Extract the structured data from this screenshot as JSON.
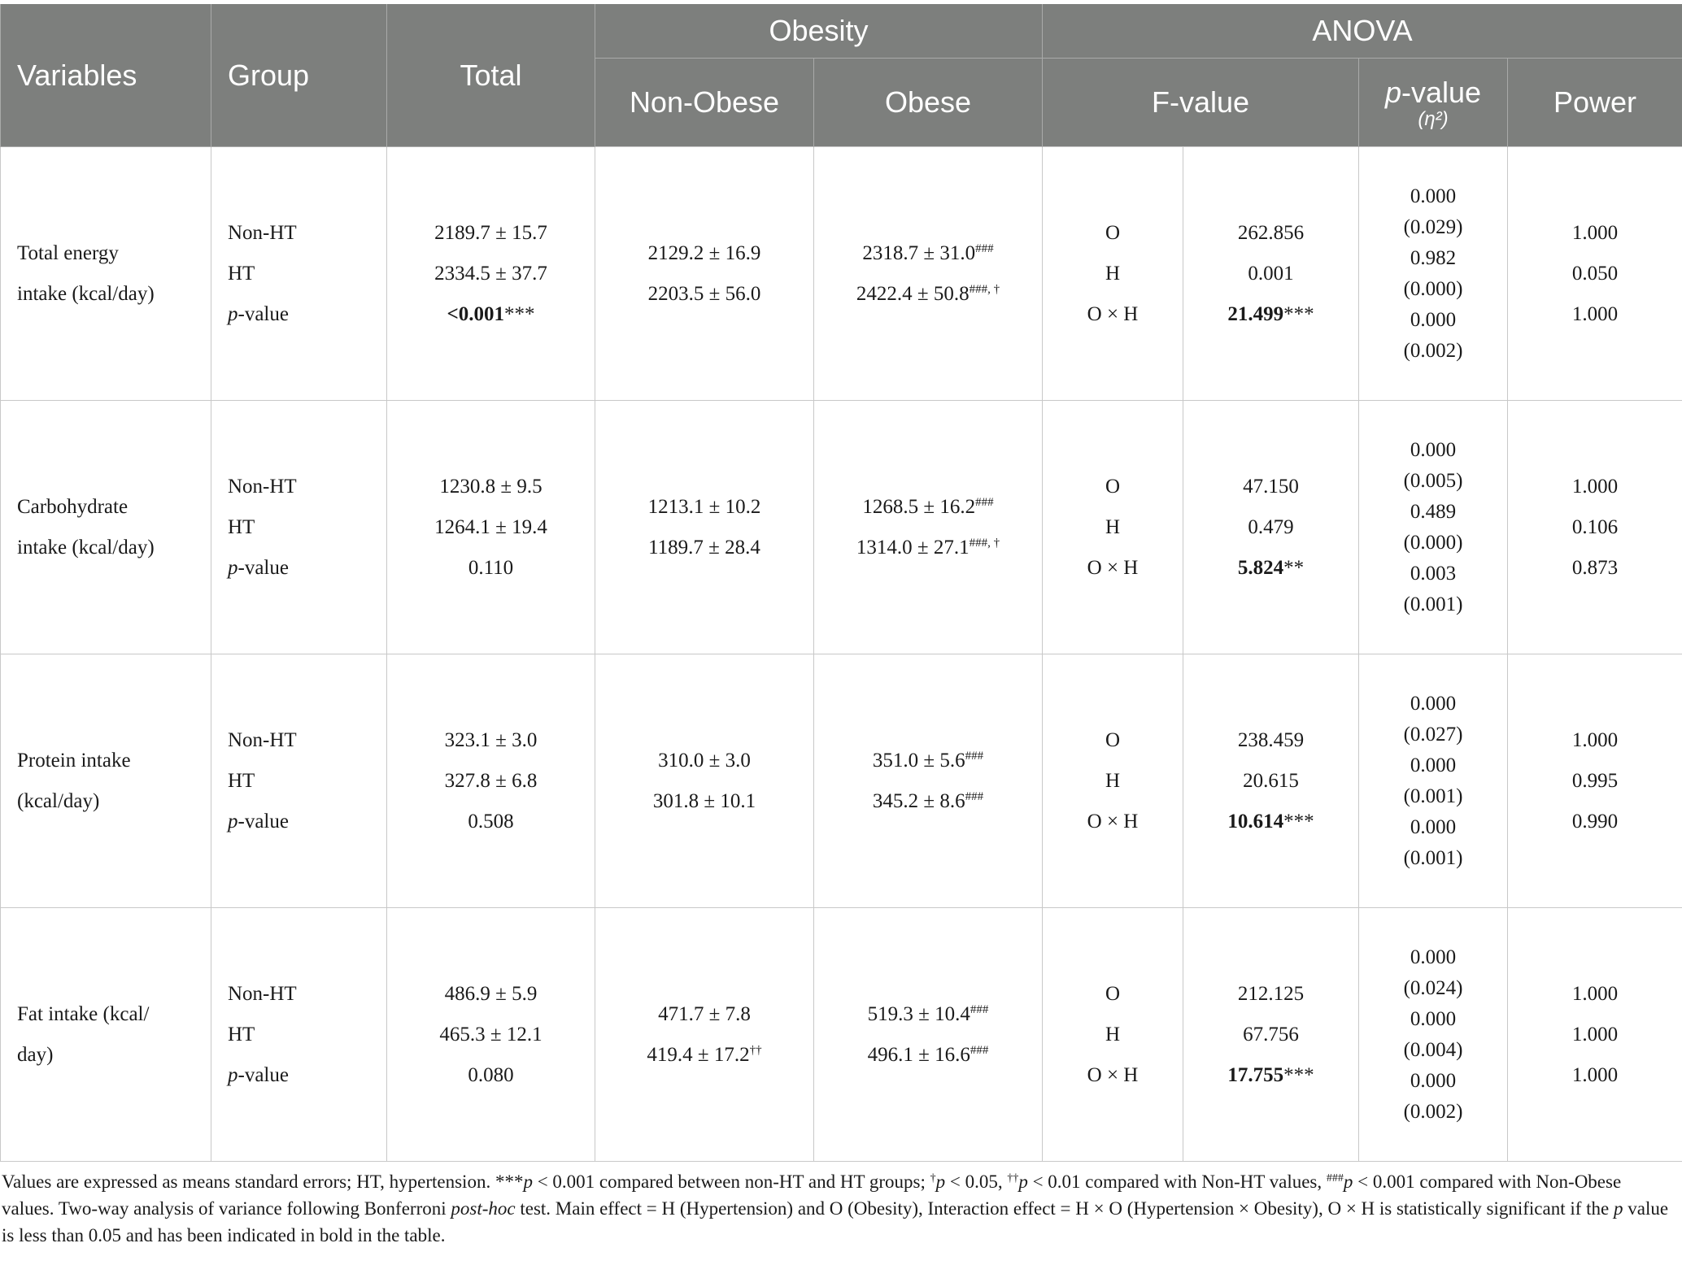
{
  "header": {
    "variables": "Variables",
    "group": "Group",
    "total": "Total",
    "obesity": "Obesity",
    "non_obese": "Non-Obese",
    "obese": "Obese",
    "anova": "ANOVA",
    "f_value": "F-value",
    "p_value_p": "p",
    "p_value_rest": "-value",
    "eta": "(η²)",
    "power": "Power"
  },
  "rows": [
    {
      "variable": [
        "Total energy",
        "intake (kcal/day)"
      ],
      "groups": [
        "Non-HT",
        "HT",
        "-value"
      ],
      "total": [
        "2189.7 ± 15.7",
        "2334.5 ± 37.7"
      ],
      "total_p": "<0.001",
      "total_p_stars": "***",
      "non_obese": [
        "2129.2 ± 16.9",
        "2203.5 ± 56.0"
      ],
      "obese": [
        [
          "2318.7 ± 31.0",
          "###"
        ],
        [
          "2422.4 ± 50.8",
          "###, †"
        ]
      ],
      "effects": [
        "O",
        "H",
        "O × H"
      ],
      "f": [
        "262.856",
        "0.001",
        "21.499"
      ],
      "f_stars": "***",
      "p_eta": [
        "0.000",
        "(0.029)",
        "0.982",
        "(0.000)",
        "0.000",
        "(0.002)"
      ],
      "power": [
        "1.000",
        "0.050",
        "1.000"
      ]
    },
    {
      "variable": [
        "Carbohydrate",
        "intake (kcal/day)"
      ],
      "groups": [
        "Non-HT",
        "HT",
        "-value"
      ],
      "total": [
        "1230.8 ± 9.5",
        "1264.1 ± 19.4"
      ],
      "total_p": "0.110",
      "total_p_stars": "",
      "non_obese": [
        "1213.1 ± 10.2",
        "1189.7 ± 28.4"
      ],
      "obese": [
        [
          "1268.5 ± 16.2",
          "###"
        ],
        [
          "1314.0 ± 27.1",
          "###, †"
        ]
      ],
      "effects": [
        "O",
        "H",
        "O × H"
      ],
      "f": [
        "47.150",
        "0.479",
        "5.824"
      ],
      "f_stars": "**",
      "p_eta": [
        "0.000",
        "(0.005)",
        "0.489",
        "(0.000)",
        "0.003",
        "(0.001)"
      ],
      "power": [
        "1.000",
        "0.106",
        "0.873"
      ]
    },
    {
      "variable": [
        "Protein intake",
        "(kcal/day)"
      ],
      "groups": [
        "Non-HT",
        "HT",
        "-value"
      ],
      "total": [
        "323.1 ± 3.0",
        "327.8 ± 6.8"
      ],
      "total_p": "0.508",
      "total_p_stars": "",
      "non_obese": [
        "310.0 ± 3.0",
        "301.8 ± 10.1"
      ],
      "obese": [
        [
          "351.0 ± 5.6",
          "###"
        ],
        [
          "345.2 ± 8.6",
          "###"
        ]
      ],
      "effects": [
        "O",
        "H",
        "O × H"
      ],
      "f": [
        "238.459",
        "20.615",
        "10.614"
      ],
      "f_stars": "***",
      "p_eta": [
        "0.000",
        "(0.027)",
        "0.000",
        "(0.001)",
        "0.000",
        "(0.001)"
      ],
      "power": [
        "1.000",
        "0.995",
        "0.990"
      ]
    },
    {
      "variable": [
        "Fat intake (kcal/",
        "day)"
      ],
      "groups": [
        "Non-HT",
        "HT",
        "-value"
      ],
      "total": [
        "486.9 ± 5.9",
        "465.3 ± 12.1"
      ],
      "total_p": "0.080",
      "total_p_stars": "",
      "non_obese": [
        "471.7 ± 7.8",
        "419.4 ± 17.2"
      ],
      "non_obese_sup": [
        "",
        "††"
      ],
      "obese": [
        [
          "519.3 ± 10.4",
          "###"
        ],
        [
          "496.1 ± 16.6",
          "###"
        ]
      ],
      "effects": [
        "O",
        "H",
        "O × H"
      ],
      "f": [
        "212.125",
        "67.756",
        "17.755"
      ],
      "f_stars": "***",
      "p_eta": [
        "0.000",
        "(0.024)",
        "0.000",
        "(0.004)",
        "0.000",
        "(0.002)"
      ],
      "power": [
        "1.000",
        "1.000",
        "1.000"
      ]
    }
  ],
  "footnote": {
    "a": "Values are expressed as means standard errors; HT, hypertension. ***",
    "b": "p",
    "c": " < 0.001 compared between non-HT and HT groups; ",
    "d": "†",
    "e": "p",
    "f": " < 0.05, ",
    "g": "††",
    "h": "p",
    "i": " < 0.01 compared with Non-HT values, ",
    "j": "###",
    "k": "p",
    "l": " < 0.001 compared with Non-Obese values. Two-way analysis of variance following Bonferroni ",
    "m": "post-hoc",
    "n": " test. Main effect = H (Hypertension) and O (Obesity), Interaction effect = H × O (Hypertension × Obesity), O × H is statistically significant if the ",
    "o": "p",
    "q": " value is less than 0.05 and has been indicated in bold in the table."
  }
}
